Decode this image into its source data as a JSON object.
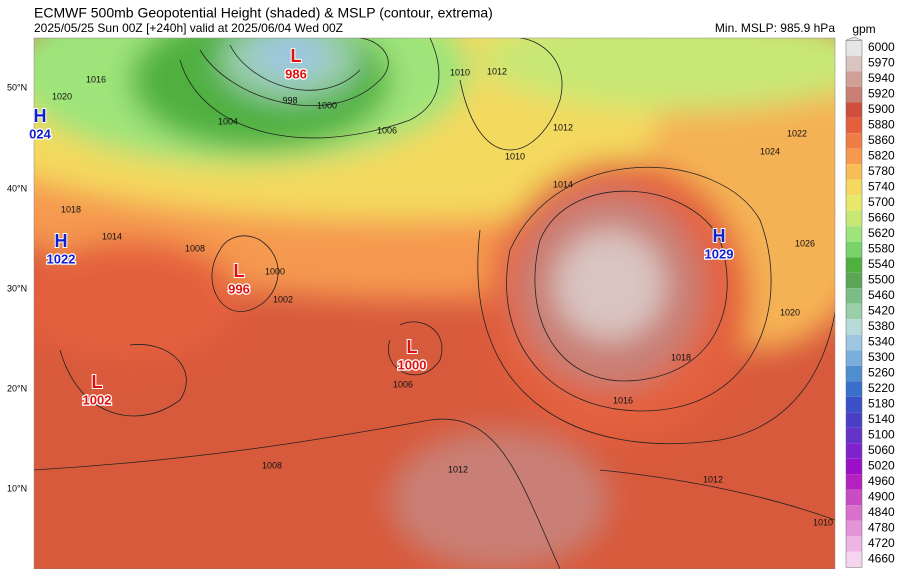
{
  "header": {
    "title": "ECMWF 500mb Geopotential Height (shaded) & MSLP (contour, extrema)",
    "subtitle": "2025/05/25 Sun 00Z [+240h] valid at 2025/06/04 Wed 00Z",
    "min_mslp": "Min. MSLP: 985.9 hPa"
  },
  "colorbar": {
    "unit": "gpm",
    "levels": [
      {
        "label": "6000",
        "color": "#e6e6e6"
      },
      {
        "label": "5970",
        "color": "#d9c4c1"
      },
      {
        "label": "5940",
        "color": "#d0a097"
      },
      {
        "label": "5920",
        "color": "#c97f74"
      },
      {
        "label": "5900",
        "color": "#cf4e3c"
      },
      {
        "label": "5880",
        "color": "#e4603c"
      },
      {
        "label": "5860",
        "color": "#f07c47"
      },
      {
        "label": "5820",
        "color": "#f5994f"
      },
      {
        "label": "5780",
        "color": "#f7bd57"
      },
      {
        "label": "5740",
        "color": "#f4d95e"
      },
      {
        "label": "5700",
        "color": "#e8e86a"
      },
      {
        "label": "5660",
        "color": "#c8e875"
      },
      {
        "label": "5620",
        "color": "#9ee47a"
      },
      {
        "label": "5580",
        "color": "#79d26a"
      },
      {
        "label": "5540",
        "color": "#4fb03f"
      },
      {
        "label": "5500",
        "color": "#5ca556"
      },
      {
        "label": "5460",
        "color": "#7cbd86"
      },
      {
        "label": "5420",
        "color": "#9bcfaa"
      },
      {
        "label": "5380",
        "color": "#b7dbd8"
      },
      {
        "label": "5340",
        "color": "#9ec6e3"
      },
      {
        "label": "5300",
        "color": "#7aaedc"
      },
      {
        "label": "5260",
        "color": "#4f8fd0"
      },
      {
        "label": "5220",
        "color": "#3a6fcc"
      },
      {
        "label": "5180",
        "color": "#3a50c8"
      },
      {
        "label": "5140",
        "color": "#4a3ec4"
      },
      {
        "label": "5100",
        "color": "#6633c8"
      },
      {
        "label": "5060",
        "color": "#7f22cc"
      },
      {
        "label": "5020",
        "color": "#9a10c8"
      },
      {
        "label": "4960",
        "color": "#b520c0"
      },
      {
        "label": "4900",
        "color": "#c84cc4"
      },
      {
        "label": "4840",
        "color": "#d870cc"
      },
      {
        "label": "4780",
        "color": "#e494d8"
      },
      {
        "label": "4720",
        "color": "#eeb4e4"
      },
      {
        "label": "4660",
        "color": "#f6d4f0"
      }
    ]
  },
  "latitudes": [
    "50°N",
    "40°N",
    "30°N",
    "20°N",
    "10°N"
  ],
  "systems": [
    {
      "symbol": "L",
      "value": "986"
    },
    {
      "symbol": "H",
      "value": "024"
    },
    {
      "symbol": "H",
      "value": "1022"
    },
    {
      "symbol": "L",
      "value": "996"
    },
    {
      "symbol": "L",
      "value": "1000"
    },
    {
      "symbol": "L",
      "value": "1002"
    },
    {
      "symbol": "H",
      "value": "1029"
    }
  ],
  "contour_labels": [
    "1016",
    "1020",
    "1010",
    "1012",
    "1004",
    "998",
    "1000",
    "1006",
    "1012",
    "1010",
    "1022",
    "1024",
    "1014",
    "1008",
    "1026",
    "1020",
    "1018",
    "1016",
    "1012",
    "1010",
    "1006",
    "1008",
    "1012",
    "1000",
    "1002",
    "1014",
    "1018"
  ]
}
